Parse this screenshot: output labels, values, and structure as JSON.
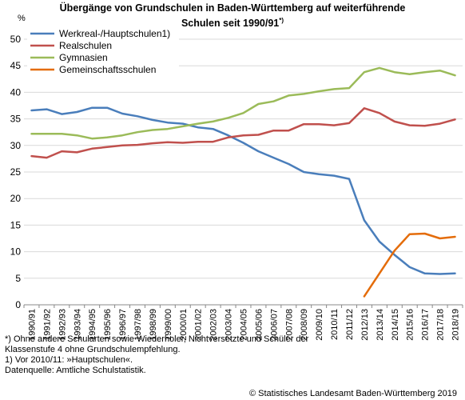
{
  "header": {
    "title_line1": "Übergänge von Grundschulen in Baden-Württemberg auf weiterführende",
    "title_line2": "Schulen seit 1990/91",
    "title_note": "*)"
  },
  "footer": {
    "note1": "*) Ohne andere Schularten sowie Wiederholer, Nichtversetzte und Schüler der",
    "note2": "Klassenstufe 4 ohne Grundschulempfehlung.",
    "note3": "1) Vor 2010/11: »Hauptschulen«.",
    "note4": "Datenquelle: Amtliche Schulstatistik.",
    "copyright": "© Statistisches Landesamt Baden-Württemberg 2019"
  },
  "chart_data": {
    "type": "line",
    "ylabel": "%",
    "ylim": [
      0,
      50
    ],
    "yticks": [
      "0",
      "5",
      "10",
      "15",
      "20",
      "25",
      "30",
      "35",
      "40",
      "45",
      "50"
    ],
    "grid": "horizontal",
    "legend_position": "top-left",
    "categories": [
      "1990/91",
      "1991/92",
      "1992/93",
      "1993/94",
      "1994/95",
      "1995/96",
      "1996/97",
      "1997/98",
      "1998/99",
      "1999/00",
      "2000/01",
      "2001/02",
      "2002/03",
      "2003/04",
      "2004/05",
      "2005/06",
      "2006/07",
      "2007/08",
      "2008/09",
      "2009/10",
      "2010/11",
      "2011/12",
      "2012/13",
      "2013/14",
      "2014/15",
      "2015/16",
      "2016/17",
      "2017/18",
      "2018/19"
    ],
    "series": [
      {
        "name": "Werkreal-/Hauptschulen1)",
        "color": "#4a7ebb",
        "values": [
          36.6,
          36.8,
          35.9,
          36.3,
          37.1,
          37.1,
          36.0,
          35.5,
          34.8,
          34.3,
          34.1,
          33.4,
          33.1,
          31.9,
          30.5,
          28.9,
          27.7,
          26.5,
          25.0,
          24.6,
          24.3,
          23.7,
          15.9,
          11.9,
          9.4,
          7.1,
          5.9,
          5.8,
          5.9
        ]
      },
      {
        "name": "Realschulen",
        "color": "#c0504d",
        "values": [
          28.0,
          27.7,
          28.9,
          28.7,
          29.4,
          29.7,
          30.0,
          30.1,
          30.4,
          30.6,
          30.5,
          30.7,
          30.7,
          31.5,
          31.9,
          32.0,
          32.8,
          32.8,
          34.0,
          34.0,
          33.8,
          34.2,
          37.0,
          36.1,
          34.5,
          33.8,
          33.7,
          34.1,
          34.9
        ]
      },
      {
        "name": "Gymnasien",
        "color": "#9bbb59",
        "values": [
          32.2,
          32.2,
          32.2,
          31.9,
          31.3,
          31.5,
          31.9,
          32.5,
          32.9,
          33.1,
          33.6,
          34.1,
          34.5,
          35.2,
          36.1,
          37.8,
          38.3,
          39.4,
          39.7,
          40.2,
          40.6,
          40.8,
          43.8,
          44.6,
          43.8,
          43.4,
          43.8,
          44.1,
          43.2
        ]
      },
      {
        "name": "Gemeinschaftsschulen",
        "color": "#e46c0a",
        "values": [
          null,
          null,
          null,
          null,
          null,
          null,
          null,
          null,
          null,
          null,
          null,
          null,
          null,
          null,
          null,
          null,
          null,
          null,
          null,
          null,
          null,
          null,
          1.6,
          5.9,
          10.2,
          13.3,
          13.4,
          12.5,
          12.8
        ]
      }
    ]
  }
}
